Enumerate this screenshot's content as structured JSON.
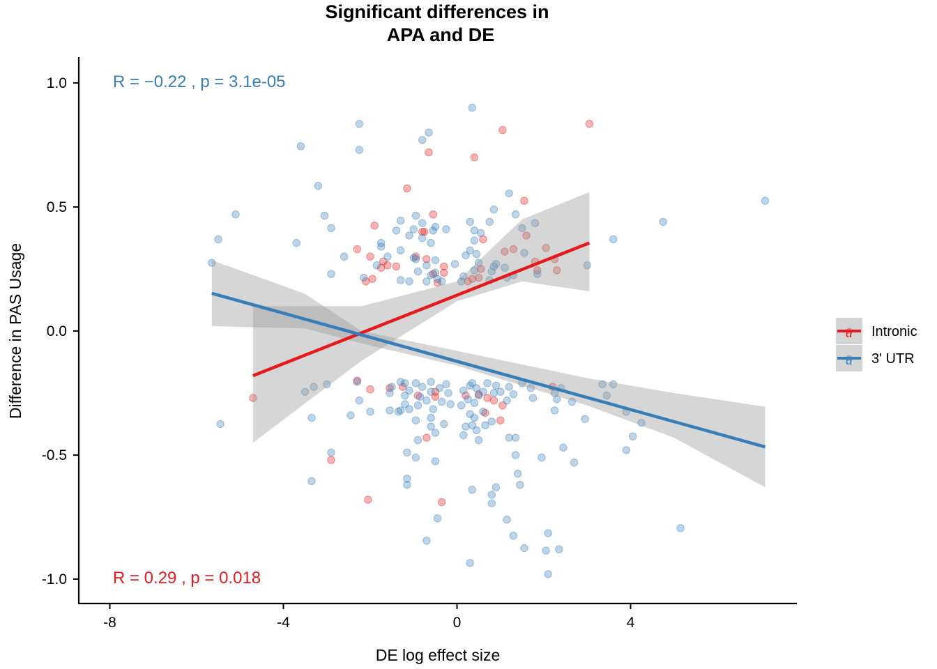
{
  "chart_data": {
    "type": "scatter",
    "title_lines": [
      "Significant differences in",
      "APA and DE"
    ],
    "xlabel": "DE log effect size",
    "ylabel": "Difference in PAS Usage",
    "xlim": [
      -8.8,
      7.8
    ],
    "ylim": [
      -1.1,
      1.1
    ],
    "x_ticks": [
      -8,
      -4,
      0,
      4
    ],
    "x_tick_labels": [
      "-8",
      "-4",
      "0",
      "4"
    ],
    "y_ticks": [
      1.0,
      0.5,
      0.0,
      -0.5,
      -1.0
    ],
    "y_tick_labels": [
      "1.0",
      "0.5",
      "0.0",
      "-0.5",
      "-1.0"
    ],
    "grid": false,
    "legend_position": "right",
    "legend": [
      {
        "label": "Intronic",
        "color": "#E41A1C"
      },
      {
        "label": "3' UTR",
        "color": "#377EB8"
      }
    ],
    "stats": [
      {
        "series": "3' UTR",
        "r_text": "R = −0.22 , p = 3.1e-05",
        "color": "#377EB8"
      },
      {
        "series": "Intronic",
        "r_text": "R = 0.29 , p = 0.018",
        "color": "#E41A1C"
      }
    ],
    "series": [
      {
        "name": "Intronic",
        "color": "#E41A1C",
        "fit": {
          "x": [
            -4.7,
            3.05
          ],
          "y": [
            -0.18,
            0.355
          ]
        },
        "ci_upper_mid": [
          [
            -4.7,
            0.1
          ],
          [
            -2.2,
            0.1
          ],
          [
            0.0,
            0.2
          ],
          [
            1.5,
            0.45
          ],
          [
            3.05,
            0.56
          ]
        ],
        "ci_lower_mid": [
          [
            -4.7,
            -0.45
          ],
          [
            -2.2,
            -0.12
          ],
          [
            0.0,
            0.12
          ],
          [
            1.5,
            0.2
          ],
          [
            3.05,
            0.16
          ]
        ],
        "points": [
          [
            3.05,
            0.835
          ],
          [
            1.05,
            0.81
          ],
          [
            -0.65,
            0.72
          ],
          [
            0.4,
            0.7
          ],
          [
            -1.15,
            0.575
          ],
          [
            1.55,
            0.525
          ],
          [
            -0.55,
            0.47
          ],
          [
            -1.9,
            0.425
          ],
          [
            1.6,
            0.385
          ],
          [
            -0.75,
            0.4
          ],
          [
            -0.8,
            0.4
          ],
          [
            0.6,
            0.37
          ],
          [
            2.05,
            0.335
          ],
          [
            1.1,
            0.32
          ],
          [
            1.3,
            0.33
          ],
          [
            -2.3,
            0.33
          ],
          [
            -2.0,
            0.3
          ],
          [
            -0.95,
            0.3
          ],
          [
            -0.7,
            0.29
          ],
          [
            2.25,
            0.29
          ],
          [
            1.8,
            0.28
          ],
          [
            -1.7,
            0.28
          ],
          [
            -1.4,
            0.26
          ],
          [
            -1.6,
            0.265
          ],
          [
            -0.3,
            0.26
          ],
          [
            0.55,
            0.25
          ],
          [
            1.85,
            0.245
          ],
          [
            -1.75,
            0.255
          ],
          [
            2.3,
            0.245
          ],
          [
            -0.3,
            0.235
          ],
          [
            -0.55,
            0.23
          ],
          [
            -1.95,
            0.21
          ],
          [
            -2.1,
            0.2
          ],
          [
            0.35,
            0.21
          ],
          [
            0.25,
            0.2
          ],
          [
            -0.45,
            0.195
          ],
          [
            0.5,
            0.215
          ],
          [
            2.2,
            -0.225
          ],
          [
            -2.0,
            -0.235
          ],
          [
            -1.55,
            -0.23
          ],
          [
            -1.25,
            -0.225
          ],
          [
            -0.5,
            -0.245
          ],
          [
            0.5,
            -0.255
          ],
          [
            -0.9,
            -0.26
          ],
          [
            -0.5,
            -0.265
          ],
          [
            0.2,
            -0.26
          ],
          [
            0.85,
            -0.28
          ],
          [
            0.7,
            -0.27
          ],
          [
            1.05,
            -0.3
          ],
          [
            0.65,
            -0.33
          ],
          [
            -4.7,
            -0.27
          ],
          [
            1.0,
            -0.36
          ],
          [
            -0.7,
            -0.43
          ],
          [
            -2.9,
            -0.52
          ],
          [
            -2.05,
            -0.68
          ],
          [
            -0.35,
            -0.69
          ],
          [
            -2.3,
            -0.2
          ]
        ]
      },
      {
        "name": "3' UTR",
        "color": "#377EB8",
        "fit": {
          "x": [
            -5.65,
            7.1
          ],
          "y": [
            0.152,
            -0.467
          ]
        },
        "ci_upper_mid": [
          [
            -5.65,
            0.285
          ],
          [
            -3.5,
            0.15
          ],
          [
            -2.2,
            0.0
          ],
          [
            0.0,
            -0.08
          ],
          [
            3.0,
            -0.19
          ],
          [
            5.0,
            -0.25
          ],
          [
            7.1,
            -0.305
          ]
        ],
        "ci_lower_mid": [
          [
            -5.65,
            0.02
          ],
          [
            -3.5,
            0.01
          ],
          [
            -2.2,
            -0.05
          ],
          [
            0.0,
            -0.14
          ],
          [
            3.0,
            -0.3
          ],
          [
            5.0,
            -0.43
          ],
          [
            7.1,
            -0.63
          ]
        ],
        "points": [
          [
            0.35,
            0.9
          ],
          [
            -2.25,
            0.835
          ],
          [
            -0.65,
            0.8
          ],
          [
            -0.8,
            0.77
          ],
          [
            -3.6,
            0.745
          ],
          [
            -2.25,
            0.73
          ],
          [
            -3.2,
            0.585
          ],
          [
            1.2,
            0.555
          ],
          [
            7.1,
            0.525
          ],
          [
            0.85,
            0.49
          ],
          [
            -5.1,
            0.47
          ],
          [
            -3.05,
            0.465
          ],
          [
            1.35,
            0.47
          ],
          [
            -0.95,
            0.465
          ],
          [
            -1.3,
            0.445
          ],
          [
            4.75,
            0.44
          ],
          [
            0.3,
            0.44
          ],
          [
            0.75,
            0.44
          ],
          [
            1.8,
            0.435
          ],
          [
            -0.8,
            0.435
          ],
          [
            -2.9,
            0.415
          ],
          [
            -1.4,
            0.405
          ],
          [
            1.5,
            0.415
          ],
          [
            -0.25,
            0.41
          ],
          [
            -0.5,
            0.42
          ],
          [
            -1.0,
            0.41
          ],
          [
            0.4,
            0.405
          ],
          [
            -0.55,
            0.405
          ],
          [
            0.55,
            0.395
          ],
          [
            -1.1,
            0.385
          ],
          [
            -0.8,
            0.375
          ],
          [
            3.6,
            0.37
          ],
          [
            -5.5,
            0.37
          ],
          [
            0.4,
            0.365
          ],
          [
            -3.7,
            0.355
          ],
          [
            -1.75,
            0.355
          ],
          [
            -0.6,
            0.355
          ],
          [
            -1.75,
            0.34
          ],
          [
            0.3,
            0.325
          ],
          [
            -1.3,
            0.325
          ],
          [
            1.55,
            0.315
          ],
          [
            0.45,
            0.31
          ],
          [
            -1.6,
            0.3
          ],
          [
            0.2,
            0.305
          ],
          [
            -1.0,
            0.295
          ],
          [
            -2.6,
            0.3
          ],
          [
            -0.95,
            0.29
          ],
          [
            -0.5,
            0.285
          ],
          [
            -0.05,
            0.27
          ],
          [
            0.9,
            0.27
          ],
          [
            0.5,
            0.275
          ],
          [
            -0.7,
            0.265
          ],
          [
            -1.85,
            0.265
          ],
          [
            0.85,
            0.26
          ],
          [
            1.1,
            0.255
          ],
          [
            -5.65,
            0.275
          ],
          [
            3.0,
            0.265
          ],
          [
            0.4,
            0.245
          ],
          [
            0.8,
            0.24
          ],
          [
            -0.9,
            0.24
          ],
          [
            -0.5,
            0.235
          ],
          [
            -2.9,
            0.23
          ],
          [
            1.85,
            0.23
          ],
          [
            -0.6,
            0.225
          ],
          [
            0.15,
            0.22
          ],
          [
            1.3,
            0.225
          ],
          [
            -1.3,
            0.205
          ],
          [
            -0.45,
            0.21
          ],
          [
            -2.15,
            0.215
          ],
          [
            1.15,
            0.215
          ],
          [
            0.75,
            0.205
          ],
          [
            -0.7,
            0.2
          ],
          [
            -1.1,
            0.2
          ],
          [
            -0.35,
            0.2
          ],
          [
            0.1,
            0.2
          ],
          [
            -1.3,
            -0.205
          ],
          [
            -1.2,
            -0.21
          ],
          [
            -0.95,
            -0.21
          ],
          [
            -0.6,
            -0.205
          ],
          [
            0.35,
            -0.21
          ],
          [
            0.7,
            -0.21
          ],
          [
            1.5,
            -0.21
          ],
          [
            -0.25,
            -0.215
          ],
          [
            0.3,
            -0.22
          ],
          [
            0.9,
            -0.22
          ],
          [
            -2.3,
            -0.205
          ],
          [
            -1.5,
            -0.225
          ],
          [
            -0.8,
            -0.225
          ],
          [
            -0.4,
            -0.23
          ],
          [
            0.45,
            -0.23
          ],
          [
            1.2,
            -0.225
          ],
          [
            -3.3,
            -0.225
          ],
          [
            -3.0,
            -0.215
          ],
          [
            3.35,
            -0.215
          ],
          [
            3.6,
            -0.215
          ],
          [
            2.4,
            -0.23
          ],
          [
            1.7,
            -0.23
          ],
          [
            -1.1,
            -0.24
          ],
          [
            -0.6,
            -0.245
          ],
          [
            0.15,
            -0.24
          ],
          [
            0.6,
            -0.245
          ],
          [
            1.0,
            -0.245
          ],
          [
            -3.5,
            -0.245
          ],
          [
            2.25,
            -0.25
          ],
          [
            0.85,
            -0.25
          ],
          [
            -1.55,
            -0.25
          ],
          [
            -0.2,
            -0.25
          ],
          [
            0.5,
            -0.26
          ],
          [
            1.3,
            -0.255
          ],
          [
            3.45,
            -0.26
          ],
          [
            -1.2,
            -0.26
          ],
          [
            -0.85,
            -0.265
          ],
          [
            1.75,
            -0.27
          ],
          [
            2.3,
            -0.275
          ],
          [
            -2.25,
            -0.28
          ],
          [
            -0.7,
            -0.28
          ],
          [
            0.25,
            -0.275
          ],
          [
            -0.35,
            -0.285
          ],
          [
            1.15,
            -0.28
          ],
          [
            2.65,
            -0.285
          ],
          [
            -0.9,
            -0.3
          ],
          [
            -1.2,
            -0.295
          ],
          [
            0.4,
            -0.29
          ],
          [
            0.1,
            -0.3
          ],
          [
            -0.15,
            -0.295
          ],
          [
            -1.3,
            -0.32
          ],
          [
            -1.55,
            -0.32
          ],
          [
            -1.35,
            -0.325
          ],
          [
            -1.1,
            -0.315
          ],
          [
            -0.55,
            -0.315
          ],
          [
            0.6,
            -0.325
          ],
          [
            2.25,
            -0.32
          ],
          [
            3.9,
            -0.325
          ],
          [
            0.3,
            -0.335
          ],
          [
            -2.0,
            -0.325
          ],
          [
            -2.45,
            -0.34
          ],
          [
            -3.35,
            -0.35
          ],
          [
            -0.6,
            -0.35
          ],
          [
            0.4,
            -0.35
          ],
          [
            -0.95,
            -0.36
          ],
          [
            0.8,
            -0.365
          ],
          [
            2.95,
            -0.355
          ],
          [
            4.25,
            -0.37
          ],
          [
            -0.3,
            -0.375
          ],
          [
            -5.45,
            -0.375
          ],
          [
            0.35,
            -0.38
          ],
          [
            -0.6,
            -0.385
          ],
          [
            0.2,
            -0.385
          ],
          [
            0.45,
            -0.4
          ],
          [
            0.65,
            -0.38
          ],
          [
            1.2,
            -0.43
          ],
          [
            1.35,
            -0.43
          ],
          [
            -0.5,
            -0.41
          ],
          [
            0.15,
            -0.42
          ],
          [
            0.5,
            -0.44
          ],
          [
            -0.9,
            -0.44
          ],
          [
            4.05,
            -0.425
          ],
          [
            2.45,
            -0.47
          ],
          [
            3.9,
            -0.48
          ],
          [
            -1.15,
            -0.49
          ],
          [
            -2.9,
            -0.49
          ],
          [
            1.35,
            -0.5
          ],
          [
            -0.95,
            -0.51
          ],
          [
            1.95,
            -0.51
          ],
          [
            2.7,
            -0.53
          ],
          [
            -0.5,
            -0.525
          ],
          [
            1.4,
            -0.575
          ],
          [
            -1.15,
            -0.595
          ],
          [
            -3.35,
            -0.605
          ],
          [
            1.45,
            -0.62
          ],
          [
            -1.15,
            -0.62
          ],
          [
            0.9,
            -0.63
          ],
          [
            0.35,
            -0.64
          ],
          [
            0.8,
            -0.66
          ],
          [
            0.8,
            -0.695
          ],
          [
            -0.45,
            -0.755
          ],
          [
            1.15,
            -0.76
          ],
          [
            5.15,
            -0.795
          ],
          [
            1.3,
            -0.825
          ],
          [
            2.1,
            -0.815
          ],
          [
            -0.7,
            -0.845
          ],
          [
            1.55,
            -0.875
          ],
          [
            2.05,
            -0.885
          ],
          [
            2.35,
            -0.88
          ],
          [
            0.3,
            -0.935
          ],
          [
            2.1,
            -0.98
          ]
        ]
      }
    ]
  }
}
